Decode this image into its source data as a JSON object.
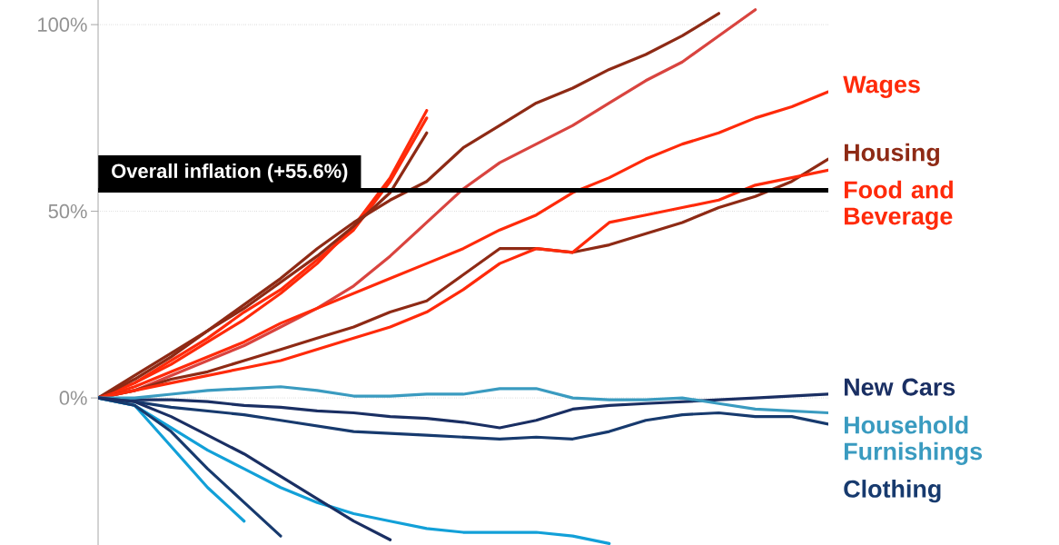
{
  "chart_data": {
    "type": "line",
    "categories": [
      null,
      null,
      null,
      null,
      null,
      null,
      null,
      null,
      null,
      null,
      null,
      null,
      null,
      null,
      null,
      null,
      null,
      null,
      null,
      null,
      null
    ],
    "ylim": [
      -39.4,
      106.6
    ],
    "yticks": [
      {
        "value": 0,
        "label": "0%"
      },
      {
        "value": 50,
        "label": "50%"
      },
      {
        "value": 100,
        "label": "100%"
      }
    ],
    "grid": "y",
    "ref_lines": [
      {
        "axis": "y",
        "value": 55.6,
        "label": "Overall inflation (+55.6%)",
        "color": "#000000"
      }
    ],
    "series": [
      {
        "color": "#ff2a0a",
        "values": [
          0,
          4,
          9,
          15,
          21,
          28,
          36,
          46,
          59,
          77,
          null,
          null,
          null,
          null,
          null,
          null,
          null,
          null,
          null,
          null,
          null
        ]
      },
      {
        "color": "#ff2a0a",
        "values": [
          0,
          4,
          10,
          16,
          23,
          29,
          37,
          45,
          58,
          75,
          null,
          null,
          null,
          null,
          null,
          null,
          null,
          null,
          null,
          null,
          null
        ]
      },
      {
        "color": "#8e2a15",
        "values": [
          0,
          5,
          11,
          18,
          24,
          31,
          38,
          46,
          55,
          71,
          null,
          null,
          null,
          null,
          null,
          null,
          null,
          null,
          null,
          null,
          null
        ]
      },
      {
        "color": "#8e2a15",
        "values": [
          0,
          6,
          12,
          18,
          25,
          32,
          40,
          47,
          53,
          58,
          67,
          73,
          79,
          83,
          88,
          92,
          97,
          103,
          null,
          null,
          null
        ]
      },
      {
        "color": "#d9443f",
        "values": [
          0,
          2,
          6,
          10,
          14,
          19,
          24,
          30,
          38,
          47,
          56,
          63,
          68,
          73,
          79,
          85,
          90,
          97,
          104,
          null,
          null
        ]
      },
      {
        "name": "Wages",
        "color": "#ff2a0a",
        "values": [
          0,
          3,
          7,
          11,
          15,
          20,
          24,
          28,
          32,
          36,
          40,
          45,
          49,
          55,
          59,
          64,
          68,
          71,
          75,
          78,
          82
        ]
      },
      {
        "name": "Housing",
        "color": "#8e2a15",
        "values": [
          0,
          2,
          5,
          7,
          10,
          13,
          16,
          19,
          23,
          26,
          33,
          40,
          40,
          39,
          41,
          44,
          47,
          51,
          54,
          58,
          64
        ]
      },
      {
        "name": "Food and Beverage",
        "color": "#ff2a0a",
        "values": [
          0,
          2,
          4,
          6,
          8,
          10,
          13,
          16,
          19,
          23,
          29,
          36,
          40,
          39,
          47,
          49,
          51,
          53,
          57,
          59,
          61
        ]
      },
      {
        "name": "New Cars",
        "color": "#1a2f63",
        "values": [
          0,
          -0.5,
          -0.5,
          -1,
          -2,
          -2.5,
          -3.5,
          -4,
          -5,
          -5.5,
          -6.5,
          -8,
          -6,
          -3,
          -2,
          -1.5,
          -1,
          -0.5,
          0,
          0.5,
          1
        ]
      },
      {
        "name": "Household Furnishings",
        "color": "#3a9bc0",
        "values": [
          0,
          0,
          1,
          2,
          2.5,
          3,
          2,
          0.5,
          0.5,
          1,
          1,
          2.5,
          2.5,
          0,
          -0.5,
          -0.5,
          0,
          -1.5,
          -3,
          -3.5,
          -4
        ]
      },
      {
        "name": "Clothing",
        "color": "#173a6e",
        "values": [
          0,
          -1,
          -2.5,
          -3.5,
          -4.5,
          -6,
          -7.5,
          -9,
          -9.5,
          -10,
          -10.5,
          -11,
          -10.5,
          -11,
          -9,
          -6,
          -4.5,
          -4,
          -5,
          -5,
          -7
        ]
      },
      {
        "color": "#12a0d8",
        "values": [
          0,
          -2,
          -8,
          -14,
          -19,
          -24,
          -28,
          -31,
          -33,
          -35,
          -36,
          -36,
          -36,
          -37,
          -39,
          null,
          null,
          null,
          null,
          null,
          null
        ]
      },
      {
        "color": "#12a0d8",
        "values": [
          0,
          -2,
          -13,
          -24,
          -33,
          null,
          null,
          null,
          null,
          null,
          null,
          null,
          null,
          null,
          null,
          null,
          null,
          null,
          null,
          null,
          null
        ]
      },
      {
        "color": "#173a6e",
        "values": [
          0,
          -2,
          -9,
          -19,
          -28,
          -37,
          null,
          null,
          null,
          null,
          null,
          null,
          null,
          null,
          null,
          null,
          null,
          null,
          null,
          null,
          null
        ]
      },
      {
        "color": "#1a2f63",
        "values": [
          0,
          -1,
          -5,
          -10,
          -15,
          -21,
          -27,
          -33,
          -38,
          null,
          null,
          null,
          null,
          null,
          null,
          null,
          null,
          null,
          null,
          null,
          null
        ]
      }
    ]
  }
}
